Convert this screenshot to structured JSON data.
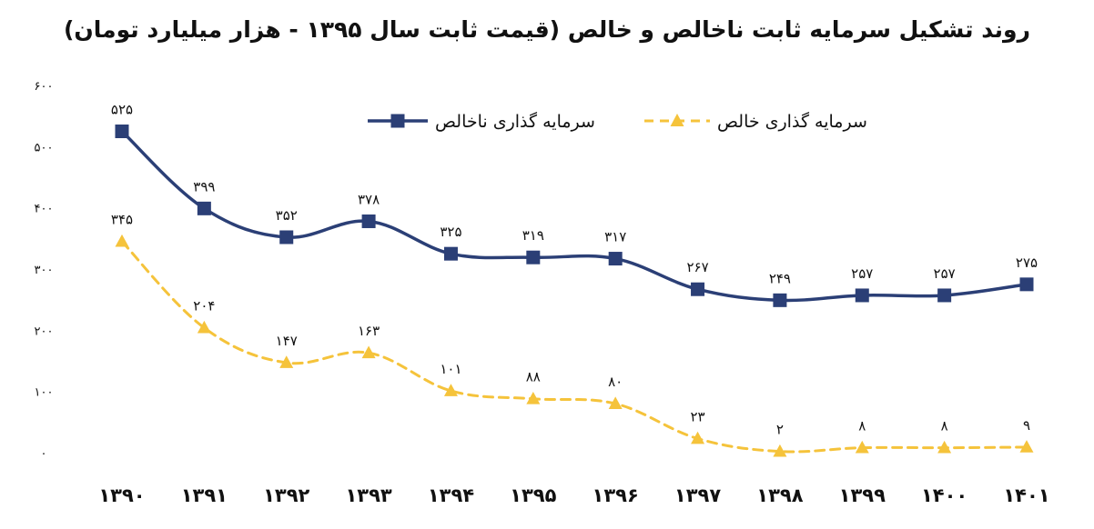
{
  "chart_data": {
    "type": "line",
    "title": "روند تشکیل سرمایه ثابت ناخالص و خالص (قیمت ثابت سال ۱۳۹۵ - هزار میلیارد تومان)",
    "categories": [
      "۱۳۹۰",
      "۱۳۹۱",
      "۱۳۹۲",
      "۱۳۹۳",
      "۱۳۹۴",
      "۱۳۹۵",
      "۱۳۹۶",
      "۱۳۹۷",
      "۱۳۹۸",
      "۱۳۹۹",
      "۱۴۰۰",
      "۱۴۰۱"
    ],
    "series": [
      {
        "name": "سرمایه گذاری ناخالص",
        "values": [
          525,
          399,
          352,
          378,
          325,
          319,
          317,
          267,
          249,
          257,
          257,
          275
        ],
        "labels": [
          "۵۲۵",
          "۳۹۹",
          "۳۵۲",
          "۳۷۸",
          "۳۲۵",
          "۳۱۹",
          "۳۱۷",
          "۲۶۷",
          "۲۴۹",
          "۲۵۷",
          "۲۵۷",
          "۲۷۵"
        ],
        "color": "#2b3f76",
        "marker": "square",
        "dash": "solid"
      },
      {
        "name": "سرمایه گذاری خالص",
        "values": [
          345,
          204,
          147,
          163,
          101,
          88,
          80,
          23,
          2,
          8,
          8,
          9
        ],
        "labels": [
          "۳۴۵",
          "۲۰۴",
          "۱۴۷",
          "۱۶۳",
          "۱۰۱",
          "۸۸",
          "۸۰",
          "۲۳",
          "۲",
          "۸",
          "۸",
          "۹"
        ],
        "color": "#f5c33b",
        "marker": "triangle",
        "dash": "dashed"
      }
    ],
    "yticks": [
      0,
      100,
      200,
      300,
      400,
      500,
      600
    ],
    "ytick_labels": [
      "۰",
      "۱۰۰",
      "۲۰۰",
      "۳۰۰",
      "۴۰۰",
      "۵۰۰",
      "۶۰۰"
    ],
    "ylim": [
      0,
      600
    ],
    "grid": false,
    "legend_position": "top-right",
    "xlabel": "",
    "ylabel": ""
  }
}
